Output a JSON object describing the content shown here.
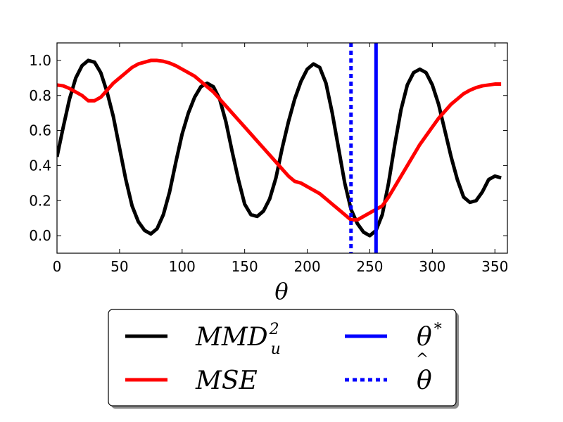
{
  "chart_data": {
    "type": "line",
    "xlabel": "θ",
    "ylabel": "",
    "xlim": [
      0,
      360
    ],
    "ylim": [
      -0.1,
      1.1
    ],
    "xticks": [
      0,
      50,
      100,
      150,
      200,
      250,
      300,
      350
    ],
    "yticks": [
      0.0,
      0.2,
      0.4,
      0.6,
      0.8,
      1.0
    ],
    "xtick_labels": [
      "0",
      "50",
      "100",
      "150",
      "200",
      "250",
      "300",
      "350"
    ],
    "ytick_labels": [
      "0.0",
      "0.2",
      "0.4",
      "0.6",
      "0.8",
      "1.0"
    ],
    "grid": false,
    "legend_placement": "below",
    "series": [
      {
        "name": "MMD_u^2",
        "legend_main": "MMD",
        "legend_sup": "2",
        "legend_sub": "u",
        "color": "#000000",
        "style": "solid",
        "x": [
          0,
          5,
          10,
          15,
          20,
          25,
          30,
          35,
          40,
          45,
          50,
          55,
          60,
          65,
          70,
          75,
          80,
          85,
          90,
          95,
          100,
          105,
          110,
          115,
          120,
          125,
          130,
          135,
          140,
          145,
          150,
          155,
          160,
          165,
          170,
          175,
          180,
          185,
          190,
          195,
          200,
          205,
          210,
          215,
          220,
          225,
          230,
          235,
          240,
          245,
          250,
          255,
          260,
          265,
          270,
          275,
          280,
          285,
          290,
          295,
          300,
          305,
          310,
          315,
          320,
          325,
          330,
          335,
          340,
          345,
          350,
          355
        ],
        "y": [
          0.45,
          0.62,
          0.78,
          0.9,
          0.97,
          1.0,
          0.99,
          0.93,
          0.82,
          0.68,
          0.5,
          0.32,
          0.17,
          0.08,
          0.03,
          0.01,
          0.04,
          0.12,
          0.25,
          0.42,
          0.58,
          0.7,
          0.79,
          0.85,
          0.87,
          0.85,
          0.78,
          0.65,
          0.48,
          0.32,
          0.18,
          0.12,
          0.11,
          0.14,
          0.21,
          0.33,
          0.5,
          0.65,
          0.78,
          0.88,
          0.95,
          0.98,
          0.96,
          0.87,
          0.7,
          0.5,
          0.3,
          0.15,
          0.07,
          0.02,
          0.0,
          0.03,
          0.12,
          0.3,
          0.52,
          0.72,
          0.86,
          0.93,
          0.95,
          0.93,
          0.86,
          0.75,
          0.6,
          0.45,
          0.32,
          0.22,
          0.19,
          0.2,
          0.25,
          0.32,
          0.34,
          0.33
        ]
      },
      {
        "name": "MSE",
        "legend_main": "MSE",
        "color": "#ff0000",
        "style": "solid",
        "x": [
          0,
          5,
          10,
          15,
          20,
          25,
          30,
          35,
          40,
          45,
          50,
          55,
          60,
          65,
          70,
          75,
          80,
          85,
          90,
          95,
          100,
          105,
          110,
          115,
          120,
          125,
          130,
          135,
          140,
          145,
          150,
          155,
          160,
          165,
          170,
          175,
          180,
          185,
          190,
          195,
          200,
          205,
          210,
          215,
          220,
          225,
          230,
          235,
          240,
          245,
          250,
          255,
          260,
          265,
          270,
          275,
          280,
          285,
          290,
          295,
          300,
          305,
          310,
          315,
          320,
          325,
          330,
          335,
          340,
          345,
          350,
          355
        ],
        "y": [
          0.86,
          0.855,
          0.84,
          0.82,
          0.8,
          0.77,
          0.77,
          0.79,
          0.83,
          0.87,
          0.9,
          0.93,
          0.96,
          0.98,
          0.99,
          1.0,
          1.0,
          0.995,
          0.985,
          0.97,
          0.95,
          0.93,
          0.91,
          0.88,
          0.85,
          0.82,
          0.78,
          0.74,
          0.7,
          0.66,
          0.62,
          0.58,
          0.54,
          0.5,
          0.46,
          0.42,
          0.38,
          0.34,
          0.31,
          0.3,
          0.28,
          0.26,
          0.24,
          0.21,
          0.18,
          0.15,
          0.12,
          0.09,
          0.09,
          0.11,
          0.13,
          0.15,
          0.17,
          0.22,
          0.28,
          0.34,
          0.4,
          0.46,
          0.52,
          0.57,
          0.62,
          0.67,
          0.71,
          0.75,
          0.78,
          0.81,
          0.83,
          0.845,
          0.855,
          0.86,
          0.865,
          0.865
        ]
      }
    ],
    "vlines": [
      {
        "name": "θ*",
        "legend_main": "θ",
        "legend_sup": "*",
        "x": 255,
        "color": "#0000ff",
        "style": "solid"
      },
      {
        "name": "θ-hat",
        "legend_main": "θ",
        "legend_hat": "^",
        "x": 235,
        "color": "#0000ff",
        "style": "dotted"
      }
    ]
  }
}
